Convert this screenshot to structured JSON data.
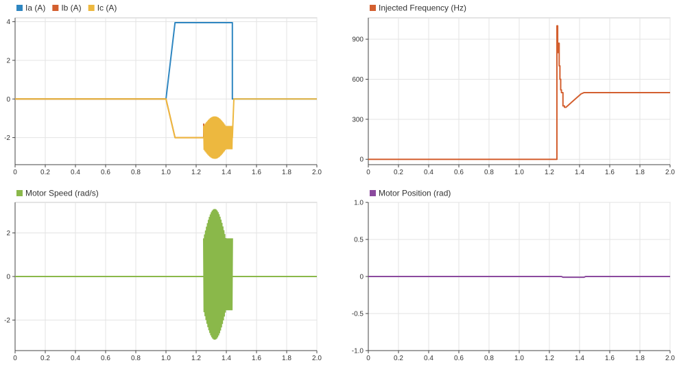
{
  "chart_data": [
    {
      "type": "line",
      "legend": {
        "placement": "top-left"
      },
      "xlim": [
        0,
        2.0
      ],
      "ylim": [
        -3.4,
        4.2
      ],
      "x_ticks": [
        "0",
        "0.2",
        "0.4",
        "0.6",
        "0.8",
        "1.0",
        "1.2",
        "1.4",
        "1.6",
        "1.8",
        "2.0"
      ],
      "y_ticks": [
        "-2",
        "0",
        "2",
        "4"
      ],
      "grid": true,
      "series": [
        {
          "name": "Ia (A)",
          "color": "#2e86c1",
          "x": [
            0,
            1.0,
            1.06,
            1.44,
            1.44,
            1.45,
            2.0
          ],
          "y": [
            0,
            0,
            3.95,
            3.95,
            0.0,
            0.0,
            0.0
          ]
        },
        {
          "name": "Ib (A)",
          "color": "#d35f2f",
          "x": [
            0,
            1.0,
            1.06,
            1.25,
            1.25,
            1.26,
            1.27
          ],
          "y": [
            0,
            0,
            -2.0,
            -2.0,
            -1.3,
            -2.6,
            -1.5
          ]
        },
        {
          "name": "Ic (A)",
          "color": "#edb83f",
          "x": [
            0,
            1.0,
            1.06,
            1.25,
            1.44,
            1.45,
            2.0
          ],
          "y": [
            0,
            0,
            -2.0,
            -2.0,
            -2.0,
            0.0,
            0.0
          ],
          "oscillation": {
            "x_start": 1.25,
            "x_end": 1.44,
            "low": -3.1,
            "high": -0.9
          }
        }
      ]
    },
    {
      "type": "line",
      "legend": {
        "placement": "top-left"
      },
      "xlim": [
        0,
        2.0
      ],
      "ylim": [
        -40,
        1060
      ],
      "x_ticks": [
        "0",
        "0.2",
        "0.4",
        "0.6",
        "0.8",
        "1.0",
        "1.2",
        "1.4",
        "1.6",
        "1.8",
        "2.0"
      ],
      "y_ticks": [
        "0",
        "300",
        "600",
        "900"
      ],
      "grid": true,
      "series": [
        {
          "name": "Injected Frequency (Hz)",
          "color": "#d35f2f",
          "x": [
            0,
            1.25,
            1.25,
            1.255,
            1.255,
            1.26,
            1.26,
            1.265,
            1.265,
            1.27,
            1.27,
            1.275,
            1.275,
            1.28,
            1.28,
            1.29,
            1.29,
            1.3,
            1.3,
            1.31,
            1.33,
            1.35,
            1.37,
            1.39,
            1.41,
            1.43,
            2.0
          ],
          "y": [
            0,
            0,
            1000,
            1000,
            800,
            800,
            870,
            870,
            700,
            700,
            600,
            600,
            520,
            520,
            500,
            500,
            400,
            400,
            390,
            390,
            410,
            430,
            450,
            470,
            490,
            500,
            500
          ]
        }
      ]
    },
    {
      "type": "line",
      "legend": {
        "placement": "top-left"
      },
      "xlim": [
        0,
        2.0
      ],
      "ylim": [
        -3.4,
        3.4
      ],
      "x_ticks": [
        "0",
        "0.2",
        "0.4",
        "0.6",
        "0.8",
        "1.0",
        "1.2",
        "1.4",
        "1.6",
        "1.8",
        "2.0"
      ],
      "y_ticks": [
        "-2",
        "0",
        "2"
      ],
      "grid": true,
      "series": [
        {
          "name": "Motor Speed (rad/s)",
          "color": "#8ab84a",
          "x": [
            0,
            2.0
          ],
          "y": [
            0,
            0
          ],
          "oscillation": {
            "x_start": 1.25,
            "x_end": 1.44,
            "low": -2.9,
            "high": 3.1
          }
        }
      ]
    },
    {
      "type": "line",
      "legend": {
        "placement": "top-left"
      },
      "xlim": [
        0,
        2.0
      ],
      "ylim": [
        -1.0,
        1.0
      ],
      "x_ticks": [
        "0",
        "0.2",
        "0.4",
        "0.6",
        "0.8",
        "1.0",
        "1.2",
        "1.4",
        "1.6",
        "1.8",
        "2.0"
      ],
      "y_ticks": [
        "-1.0",
        "-0.5",
        "0",
        "0.5",
        "1.0"
      ],
      "grid": true,
      "series": [
        {
          "name": "Motor Position (rad)",
          "color": "#8b4a9e",
          "x": [
            0,
            1.28,
            1.29,
            1.43,
            1.44,
            2.0
          ],
          "y": [
            0,
            0,
            -0.01,
            -0.01,
            0,
            0
          ]
        }
      ]
    }
  ]
}
